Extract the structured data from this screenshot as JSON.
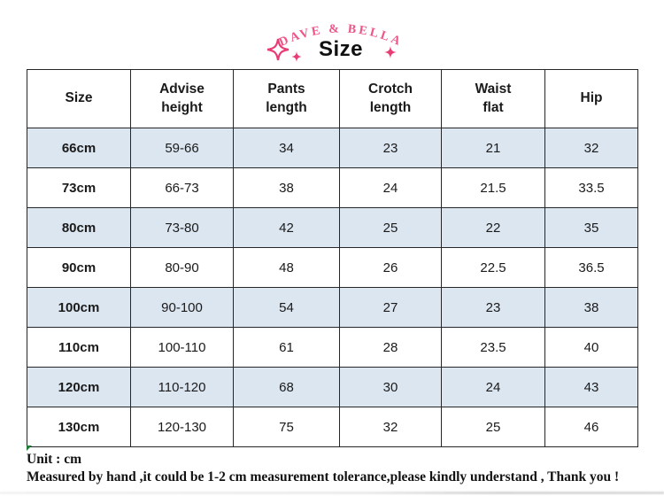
{
  "brand_name": "DAVE & BELLA",
  "page_title": "Size",
  "chart_data": {
    "type": "table",
    "title": "Size",
    "columns": [
      "Size",
      "Advise height",
      "Pants length",
      "Crotch length",
      "Waist flat",
      "Hip"
    ],
    "rows": [
      [
        "66cm",
        "59-66",
        "34",
        "23",
        "21",
        "32"
      ],
      [
        "73cm",
        "66-73",
        "38",
        "24",
        "21.5",
        "33.5"
      ],
      [
        "80cm",
        "73-80",
        "42",
        "25",
        "22",
        "35"
      ],
      [
        "90cm",
        "80-90",
        "48",
        "26",
        "22.5",
        "36.5"
      ],
      [
        "100cm",
        "90-100",
        "54",
        "27",
        "23",
        "38"
      ],
      [
        "110cm",
        "100-110",
        "61",
        "28",
        "23.5",
        "40"
      ],
      [
        "120cm",
        "110-120",
        "68",
        "30",
        "24",
        "43"
      ],
      [
        "130cm",
        "120-130",
        "75",
        "32",
        "25",
        "46"
      ]
    ],
    "layout_hints": {
      "row_stripe": "odd data rows light blue, even data rows white",
      "first_column_bold": true,
      "all_cells_centered": true
    }
  },
  "notes": {
    "unit": "Unit : cm",
    "tolerance": "Measured by hand ,it could be 1-2 cm measurement tolerance,please kindly understand , Thank you !"
  },
  "icons": {
    "left_large": "sparkle-outline-icon",
    "left_small": "sparkle-filled-icon",
    "right_small": "sparkle-filled-icon"
  },
  "colors": {
    "accent_pink": "#ee5586",
    "sparkle_pink": "#e83d74",
    "row_alt_blue": "#dce6f1",
    "table_border": "#262626",
    "text": "#1a1a1a",
    "excel_marker_green": "#1e7d34"
  }
}
